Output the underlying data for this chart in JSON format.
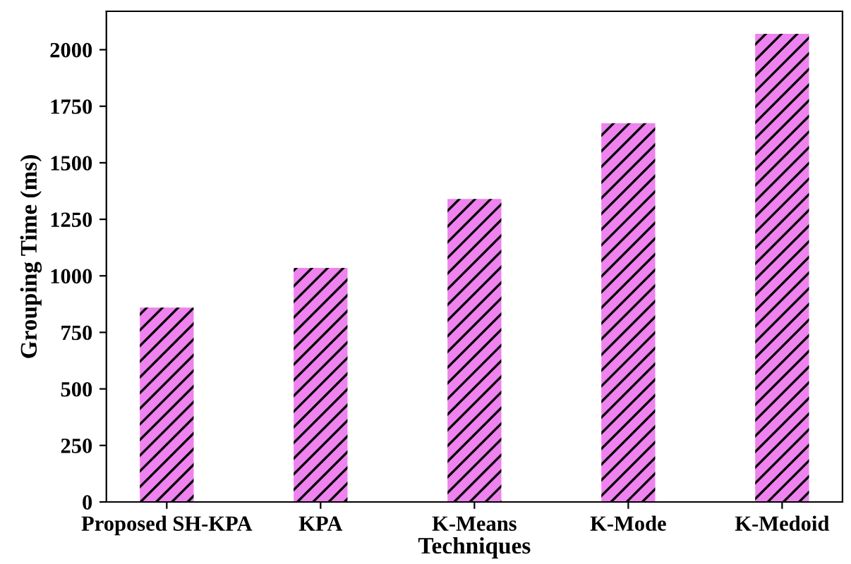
{
  "chart_data": {
    "type": "bar",
    "xlabel": "Techniques",
    "ylabel": "Grouping Time (ms)",
    "categories": [
      "Proposed SH-KPA",
      "KPA",
      "K-Means",
      "K-Mode",
      "K-Medoid"
    ],
    "values": [
      860,
      1035,
      1340,
      1675,
      2070
    ],
    "color": "#ee82ee",
    "ylim": [
      0,
      2170
    ],
    "yticks": [
      0,
      250,
      500,
      750,
      1000,
      1250,
      1500,
      1750,
      2000
    ],
    "grid": false
  }
}
